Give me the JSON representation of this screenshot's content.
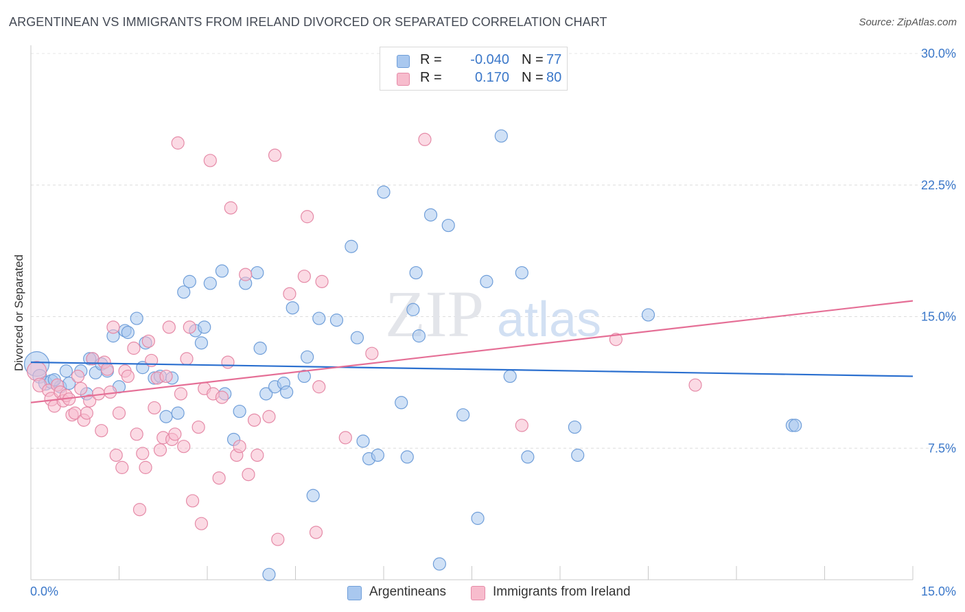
{
  "title": "ARGENTINEAN VS IMMIGRANTS FROM IRELAND DIVORCED OR SEPARATED CORRELATION CHART",
  "source": "Source: ZipAtlas.com",
  "watermark": {
    "zip": "ZIP",
    "atlas": "atlas"
  },
  "legend": {
    "rows": [
      {
        "r_label": "R =",
        "r_value": "-0.040",
        "n_label": "N =",
        "n_value": "77",
        "color": "#a9c8ef",
        "stroke": "#6f9ed9"
      },
      {
        "r_label": "R =",
        "r_value": "0.170",
        "n_label": "N =",
        "n_value": "80",
        "color": "#f7bccd",
        "stroke": "#e58aa7"
      }
    ]
  },
  "bottom_legend": [
    {
      "label": "Argentineans",
      "color": "#a9c8ef",
      "stroke": "#6f9ed9"
    },
    {
      "label": "Immigrants from Ireland",
      "color": "#f7bccd",
      "stroke": "#e58aa7"
    }
  ],
  "chart_data": {
    "type": "scatter",
    "title": "ARGENTINEAN VS IMMIGRANTS FROM IRELAND DIVORCED OR SEPARATED CORRELATION CHART",
    "ylabel": "Divorced or Separated",
    "xlabel": "",
    "xlim": [
      0,
      15
    ],
    "ylim": [
      0,
      30
    ],
    "x_tick_labels": [
      "0.0%",
      "15.0%"
    ],
    "y_ticks": [
      7.5,
      15.0,
      22.5,
      30.0
    ],
    "y_tick_labels": [
      "7.5%",
      "15.0%",
      "22.5%",
      "30.0%"
    ],
    "grid": true,
    "legend_position": "top-center",
    "series": [
      {
        "name": "Argentineans",
        "color": "#6f9ed9",
        "fill": "#a9c8ef",
        "trend": {
          "x": [
            0,
            15
          ],
          "y": [
            12.4,
            11.6
          ],
          "color": "#2a6fcf"
        },
        "points": [
          [
            0.1,
            12.3,
            18
          ],
          [
            0.15,
            11.6,
            10
          ],
          [
            0.25,
            11.2,
            10
          ],
          [
            0.35,
            11.3,
            10
          ],
          [
            0.5,
            11.0,
            9
          ],
          [
            0.65,
            11.2,
            9
          ],
          [
            0.85,
            11.9,
            9
          ],
          [
            0.95,
            10.6,
            9
          ],
          [
            1.05,
            12.6,
            9
          ],
          [
            1.1,
            11.8,
            9
          ],
          [
            1.2,
            12.3,
            9
          ],
          [
            1.3,
            11.9,
            9
          ],
          [
            1.5,
            11.0,
            9
          ],
          [
            1.4,
            13.9,
            9
          ],
          [
            1.6,
            14.2,
            9
          ],
          [
            1.65,
            14.1,
            9
          ],
          [
            1.8,
            14.9,
            9
          ],
          [
            1.9,
            12.1,
            9
          ],
          [
            1.95,
            13.5,
            9
          ],
          [
            2.1,
            11.5,
            9
          ],
          [
            2.2,
            11.6,
            9
          ],
          [
            2.3,
            9.3,
            9
          ],
          [
            2.4,
            11.5,
            9
          ],
          [
            2.5,
            9.5,
            9
          ],
          [
            2.6,
            16.4,
            9
          ],
          [
            2.7,
            17.0,
            9
          ],
          [
            2.8,
            14.2,
            9
          ],
          [
            2.9,
            13.5,
            9
          ],
          [
            2.95,
            14.4,
            9
          ],
          [
            3.05,
            16.9,
            9
          ],
          [
            3.25,
            17.6,
            9
          ],
          [
            3.3,
            10.6,
            9
          ],
          [
            3.45,
            8.0,
            9
          ],
          [
            3.55,
            9.6,
            9
          ],
          [
            3.65,
            16.9,
            9
          ],
          [
            3.85,
            17.5,
            9
          ],
          [
            3.9,
            13.2,
            9
          ],
          [
            4.0,
            10.6,
            9
          ],
          [
            4.15,
            11.0,
            9
          ],
          [
            4.05,
            0.3,
            9
          ],
          [
            4.3,
            11.2,
            9
          ],
          [
            4.35,
            10.7,
            9
          ],
          [
            4.45,
            15.5,
            9
          ],
          [
            4.65,
            11.6,
            9
          ],
          [
            4.7,
            12.7,
            9
          ],
          [
            4.8,
            4.8,
            9
          ],
          [
            4.9,
            14.9,
            9
          ],
          [
            5.2,
            14.8,
            9
          ],
          [
            5.45,
            19.0,
            9
          ],
          [
            5.55,
            13.8,
            9
          ],
          [
            5.65,
            7.9,
            9
          ],
          [
            5.75,
            6.9,
            9
          ],
          [
            5.9,
            7.1,
            9
          ],
          [
            6.0,
            22.1,
            9
          ],
          [
            6.3,
            10.1,
            9
          ],
          [
            6.4,
            7.0,
            9
          ],
          [
            6.55,
            17.5,
            9
          ],
          [
            6.5,
            15.4,
            9
          ],
          [
            6.6,
            13.9,
            9
          ],
          [
            6.8,
            20.8,
            9
          ],
          [
            6.95,
            0.9,
            9
          ],
          [
            7.1,
            20.2,
            9
          ],
          [
            7.35,
            9.4,
            9
          ],
          [
            7.6,
            3.5,
            9
          ],
          [
            7.75,
            17.0,
            9
          ],
          [
            8.0,
            25.3,
            9
          ],
          [
            8.15,
            11.6,
            9
          ],
          [
            8.35,
            17.5,
            9
          ],
          [
            8.45,
            7.0,
            9
          ],
          [
            9.3,
            7.1,
            9
          ],
          [
            9.25,
            8.7,
            9
          ],
          [
            10.5,
            15.1,
            9
          ],
          [
            12.95,
            8.8,
            9
          ],
          [
            13.0,
            8.8,
            9
          ],
          [
            0.6,
            11.9,
            9
          ],
          [
            0.4,
            11.4,
            9
          ],
          [
            1.0,
            12.6,
            9
          ]
        ]
      },
      {
        "name": "Immigrants from Ireland",
        "color": "#e58aa7",
        "fill": "#f7bccd",
        "trend": {
          "x": [
            0,
            15
          ],
          "y": [
            10.1,
            15.9
          ],
          "color": "#e56f96"
        },
        "points": [
          [
            0.1,
            11.9,
            14
          ],
          [
            0.15,
            11.1,
            10
          ],
          [
            0.3,
            10.8,
            9
          ],
          [
            0.35,
            10.3,
            10
          ],
          [
            0.4,
            9.9,
            9
          ],
          [
            0.45,
            11.1,
            9
          ],
          [
            0.5,
            10.7,
            9
          ],
          [
            0.55,
            10.2,
            9
          ],
          [
            0.6,
            10.5,
            9
          ],
          [
            0.65,
            10.3,
            9
          ],
          [
            0.7,
            9.4,
            9
          ],
          [
            0.75,
            9.5,
            9
          ],
          [
            0.8,
            11.6,
            9
          ],
          [
            0.85,
            10.9,
            9
          ],
          [
            0.9,
            9.1,
            9
          ],
          [
            0.95,
            9.5,
            9
          ],
          [
            1.0,
            10.2,
            9
          ],
          [
            1.05,
            12.6,
            9
          ],
          [
            1.15,
            10.6,
            9
          ],
          [
            1.2,
            8.5,
            9
          ],
          [
            1.25,
            12.4,
            9
          ],
          [
            1.3,
            12.0,
            9
          ],
          [
            1.35,
            10.7,
            9
          ],
          [
            1.4,
            14.4,
            9
          ],
          [
            1.45,
            7.1,
            9
          ],
          [
            1.5,
            9.5,
            9
          ],
          [
            1.55,
            6.4,
            9
          ],
          [
            1.6,
            11.9,
            9
          ],
          [
            1.65,
            11.6,
            9
          ],
          [
            1.75,
            13.2,
            9
          ],
          [
            1.8,
            8.3,
            9
          ],
          [
            1.85,
            4.0,
            9
          ],
          [
            1.9,
            7.2,
            9
          ],
          [
            1.95,
            6.4,
            9
          ],
          [
            2.0,
            13.6,
            9
          ],
          [
            2.05,
            12.5,
            9
          ],
          [
            2.1,
            9.8,
            9
          ],
          [
            2.15,
            11.5,
            9
          ],
          [
            2.2,
            7.4,
            9
          ],
          [
            2.25,
            8.1,
            9
          ],
          [
            2.3,
            11.6,
            9
          ],
          [
            2.35,
            14.4,
            9
          ],
          [
            2.4,
            8.0,
            9
          ],
          [
            2.45,
            8.3,
            9
          ],
          [
            2.5,
            24.9,
            9
          ],
          [
            2.55,
            10.6,
            9
          ],
          [
            2.6,
            7.6,
            9
          ],
          [
            2.65,
            12.6,
            9
          ],
          [
            2.7,
            14.4,
            9
          ],
          [
            2.75,
            4.5,
            9
          ],
          [
            2.85,
            8.7,
            9
          ],
          [
            2.9,
            3.2,
            9
          ],
          [
            2.95,
            10.9,
            9
          ],
          [
            3.05,
            23.9,
            9
          ],
          [
            3.1,
            10.6,
            9
          ],
          [
            3.2,
            5.8,
            9
          ],
          [
            3.25,
            10.4,
            9
          ],
          [
            3.35,
            12.4,
            9
          ],
          [
            3.4,
            21.2,
            9
          ],
          [
            3.5,
            7.1,
            9
          ],
          [
            3.55,
            7.6,
            9
          ],
          [
            3.65,
            17.4,
            9
          ],
          [
            3.7,
            6.0,
            9
          ],
          [
            3.8,
            9.1,
            9
          ],
          [
            3.85,
            7.1,
            9
          ],
          [
            4.15,
            24.2,
            9
          ],
          [
            4.05,
            9.3,
            9
          ],
          [
            4.2,
            2.3,
            9
          ],
          [
            4.4,
            16.3,
            9
          ],
          [
            4.65,
            17.3,
            9
          ],
          [
            4.7,
            20.7,
            9
          ],
          [
            4.85,
            2.7,
            9
          ],
          [
            4.9,
            11.0,
            9
          ],
          [
            4.95,
            17.0,
            9
          ],
          [
            5.35,
            8.1,
            9
          ],
          [
            5.8,
            12.9,
            9
          ],
          [
            6.7,
            25.1,
            9
          ],
          [
            8.35,
            8.8,
            9
          ],
          [
            9.95,
            13.7,
            9
          ],
          [
            11.3,
            11.1,
            9
          ]
        ]
      }
    ]
  }
}
